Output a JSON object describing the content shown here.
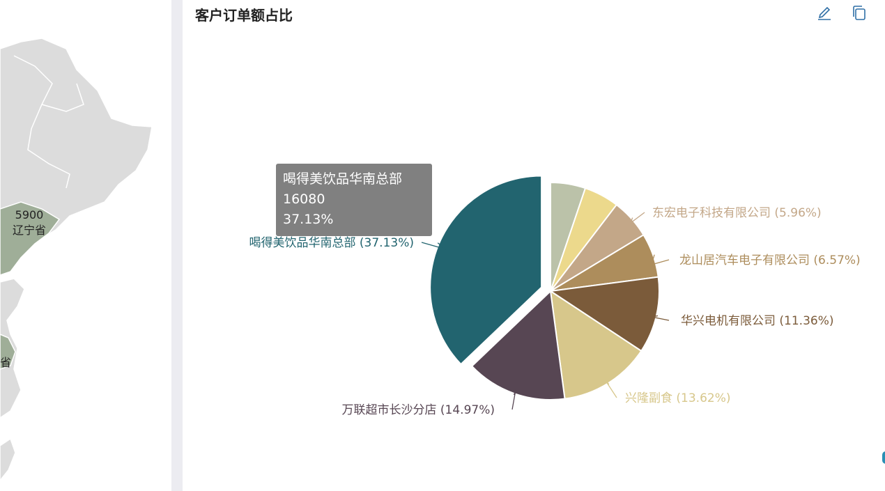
{
  "map_panel": {
    "value_label": "5900",
    "province_label": "辽宁省",
    "partial_label": "省",
    "colors": {
      "land": "#dcdcdc",
      "land_border": "#ffffff",
      "highlight": "#9fae98"
    }
  },
  "chart_panel": {
    "title": "客户订单额占比",
    "toolbar": {
      "edit_icon": "pencil-icon",
      "copy_icon": "copy-icon",
      "icon_color": "#2f6fa6"
    },
    "tooltip": {
      "name": "喝得美饮品华南总部",
      "value": "16080",
      "percent": "37.13%"
    }
  },
  "chart_data": {
    "type": "pie",
    "title": "客户订单额占比",
    "series": [
      {
        "name": "喝得美饮品华南总部",
        "percent": 37.13,
        "value": 16080,
        "label": "喝得美饮品华南总部 (37.13%)",
        "color": "#22646f",
        "highlighted": true
      },
      {
        "name": "万联超市长沙分店",
        "percent": 14.97,
        "label": "万联超市长沙分店 (14.97%)",
        "color": "#574653"
      },
      {
        "name": "兴隆副食",
        "percent": 13.62,
        "label": "兴隆副食 (13.62%)",
        "color": "#d7c78b"
      },
      {
        "name": "华兴电机有限公司",
        "percent": 11.36,
        "label": "华兴电机有限公司 (11.36%)",
        "color": "#7b5b3a"
      },
      {
        "name": "龙山居汽车电子有限公司",
        "percent": 6.57,
        "label": "龙山居汽车电子有限公司 (6.57%)",
        "color": "#ad8d5c"
      },
      {
        "name": "东宏电子科技有限公司",
        "percent": 5.96,
        "label": "东宏电子科技有限公司 (5.96%)",
        "color": "#c3a788"
      },
      {
        "name": "",
        "percent": 5.2,
        "label": "",
        "color": "#ecd98c"
      },
      {
        "name": "",
        "percent": 5.19,
        "label": "",
        "color": "#bbc2a9"
      }
    ]
  }
}
